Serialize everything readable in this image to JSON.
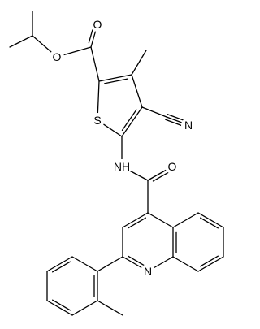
{
  "atom_labels": [
    "O",
    "O",
    "S",
    "N",
    "NH",
    "O",
    "N"
  ]
}
